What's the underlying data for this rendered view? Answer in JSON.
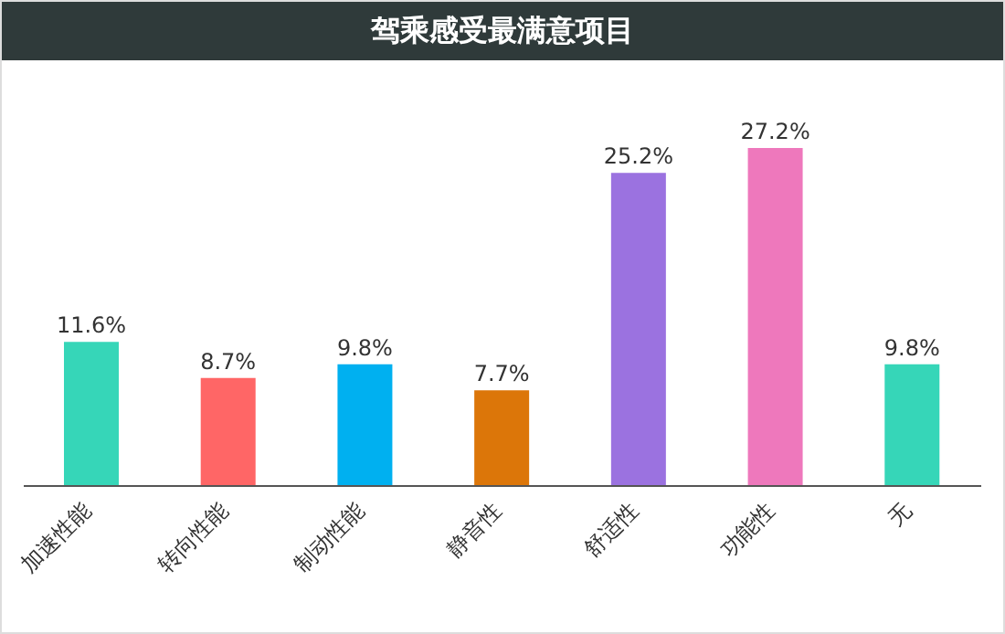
{
  "chart_data": {
    "type": "bar",
    "title": "驾乘感受最满意项目",
    "categories": [
      "加速性能",
      "转向性能",
      "制动性能",
      "静音性",
      "舒适性",
      "功能性",
      "无"
    ],
    "values": [
      11.6,
      8.7,
      9.8,
      7.7,
      25.2,
      27.2,
      9.8
    ],
    "colors": [
      "#36d6b8",
      "#ff6666",
      "#00b0f0",
      "#dc7609",
      "#9b72e0",
      "#ee78bc",
      "#36d6b8"
    ],
    "value_labels": [
      "11.6%",
      "8.7%",
      "9.8%",
      "7.7%",
      "25.2%",
      "27.2%",
      "9.8%"
    ]
  }
}
